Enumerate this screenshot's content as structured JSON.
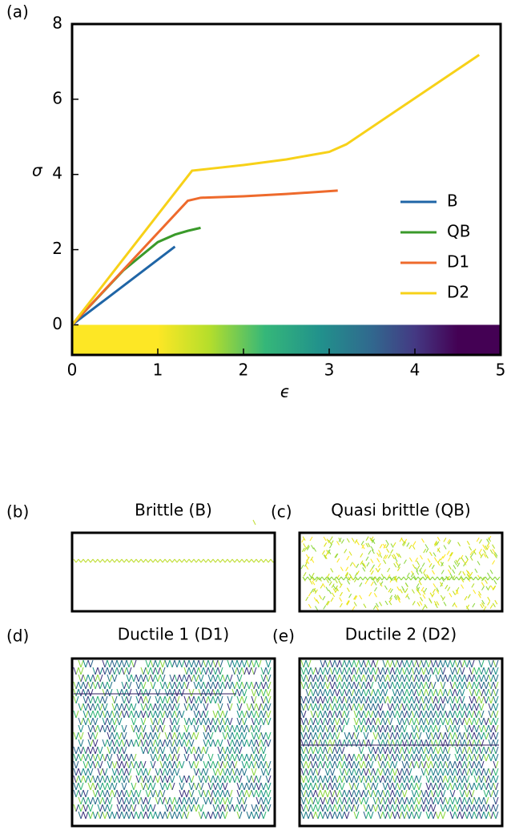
{
  "chart_data": {
    "type": "line",
    "panel_label": "(a)",
    "x_label": "ϵ",
    "y_label": "σ",
    "xlim": [
      0,
      5
    ],
    "ylim": [
      -0.8,
      8
    ],
    "xticks": [
      0,
      1,
      2,
      3,
      4,
      5
    ],
    "yticks": [
      0,
      2,
      4,
      6,
      8
    ],
    "legend": "lower right",
    "series": [
      {
        "name": "B",
        "color": "#1f65a6",
        "x": [
          0,
          1.2
        ],
        "values": [
          0,
          2.08
        ]
      },
      {
        "name": "QB",
        "color": "#3a9a2a",
        "x": [
          0,
          0.6,
          1.0,
          1.2,
          1.35,
          1.5
        ],
        "values": [
          0,
          1.45,
          2.2,
          2.4,
          2.5,
          2.58
        ]
      },
      {
        "name": "D1",
        "color": "#ee6a2c",
        "x": [
          0,
          1.35,
          1.5,
          2.0,
          2.5,
          3.1
        ],
        "values": [
          0,
          3.3,
          3.38,
          3.42,
          3.48,
          3.57
        ]
      },
      {
        "name": "D2",
        "color": "#f7d118",
        "x": [
          0,
          1.4,
          1.6,
          2.0,
          2.5,
          3.0,
          3.2,
          4.75
        ],
        "values": [
          0,
          4.1,
          4.15,
          4.25,
          4.4,
          4.6,
          4.8,
          7.18
        ]
      }
    ]
  },
  "panels": [
    {
      "label": "(b)",
      "title": "Brittle (B)"
    },
    {
      "label": "(c)",
      "title": "Quasi brittle (QB)"
    },
    {
      "label": "(d)",
      "title": "Ductile 1 (D1)"
    },
    {
      "label": "(e)",
      "title": "Ductile 2 (D2)"
    }
  ]
}
